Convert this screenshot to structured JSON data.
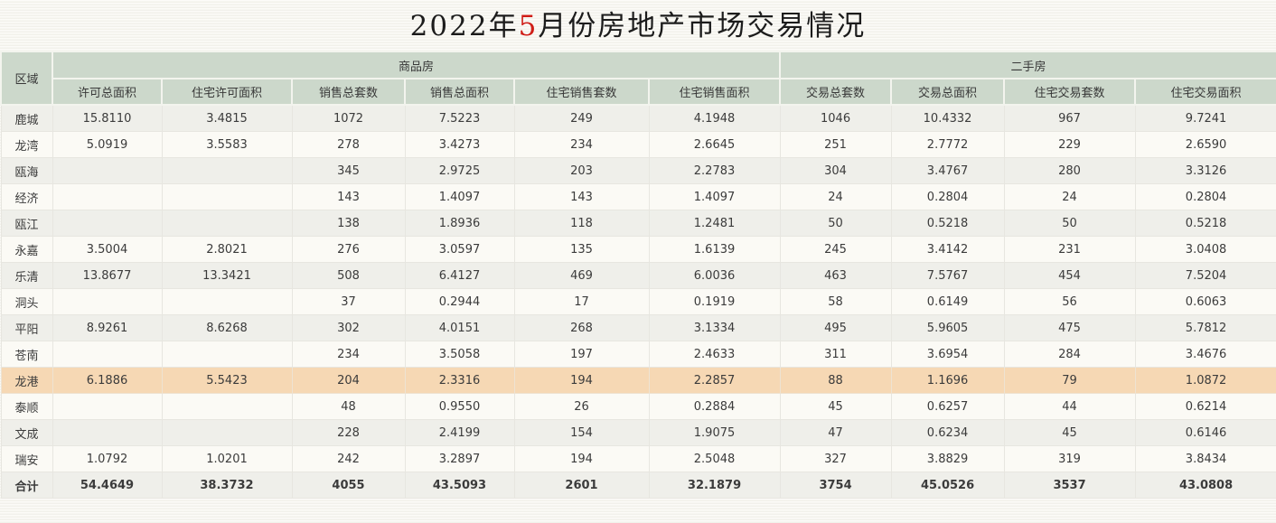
{
  "title": {
    "prefix": "2022年",
    "highlight": "5",
    "suffix": "月份房地产市场交易情况",
    "highlight_color": "#cf1d17"
  },
  "colors": {
    "header_bg": "#ccd8cb",
    "stripe_row_bg": "#efefea",
    "plain_row_bg": "#fbfaf5",
    "highlight_row_bg": "#f6d8b4",
    "page_bg": "#f8f7f1",
    "title_accent": "#cf1d17"
  },
  "table": {
    "corner_header": "区域",
    "groups": [
      {
        "label": "商品房",
        "span": 6
      },
      {
        "label": "二手房",
        "span": 4
      }
    ],
    "subheaders": [
      "许可总面积",
      "住宅许可面积",
      "销售总套数",
      "销售总面积",
      "住宅销售套数",
      "住宅销售面积",
      "交易总套数",
      "交易总面积",
      "住宅交易套数",
      "住宅交易面积"
    ],
    "rows": [
      {
        "region": "鹿城",
        "values": [
          "15.8110",
          "3.4815",
          "1072",
          "7.5223",
          "249",
          "4.1948",
          "1046",
          "10.4332",
          "967",
          "9.7241"
        ],
        "highlight": false,
        "total": false
      },
      {
        "region": "龙湾",
        "values": [
          "5.0919",
          "3.5583",
          "278",
          "3.4273",
          "234",
          "2.6645",
          "251",
          "2.7772",
          "229",
          "2.6590"
        ],
        "highlight": false,
        "total": false
      },
      {
        "region": "瓯海",
        "values": [
          "",
          "",
          "345",
          "2.9725",
          "203",
          "2.2783",
          "304",
          "3.4767",
          "280",
          "3.3126"
        ],
        "highlight": false,
        "total": false
      },
      {
        "region": "经济",
        "values": [
          "",
          "",
          "143",
          "1.4097",
          "143",
          "1.4097",
          "24",
          "0.2804",
          "24",
          "0.2804"
        ],
        "highlight": false,
        "total": false
      },
      {
        "region": "瓯江",
        "values": [
          "",
          "",
          "138",
          "1.8936",
          "118",
          "1.2481",
          "50",
          "0.5218",
          "50",
          "0.5218"
        ],
        "highlight": false,
        "total": false
      },
      {
        "region": "永嘉",
        "values": [
          "3.5004",
          "2.8021",
          "276",
          "3.0597",
          "135",
          "1.6139",
          "245",
          "3.4142",
          "231",
          "3.0408"
        ],
        "highlight": false,
        "total": false
      },
      {
        "region": "乐清",
        "values": [
          "13.8677",
          "13.3421",
          "508",
          "6.4127",
          "469",
          "6.0036",
          "463",
          "7.5767",
          "454",
          "7.5204"
        ],
        "highlight": false,
        "total": false
      },
      {
        "region": "洞头",
        "values": [
          "",
          "",
          "37",
          "0.2944",
          "17",
          "0.1919",
          "58",
          "0.6149",
          "56",
          "0.6063"
        ],
        "highlight": false,
        "total": false
      },
      {
        "region": "平阳",
        "values": [
          "8.9261",
          "8.6268",
          "302",
          "4.0151",
          "268",
          "3.1334",
          "495",
          "5.9605",
          "475",
          "5.7812"
        ],
        "highlight": false,
        "total": false
      },
      {
        "region": "苍南",
        "values": [
          "",
          "",
          "234",
          "3.5058",
          "197",
          "2.4633",
          "311",
          "3.6954",
          "284",
          "3.4676"
        ],
        "highlight": false,
        "total": false
      },
      {
        "region": "龙港",
        "values": [
          "6.1886",
          "5.5423",
          "204",
          "2.3316",
          "194",
          "2.2857",
          "88",
          "1.1696",
          "79",
          "1.0872"
        ],
        "highlight": true,
        "total": false
      },
      {
        "region": "泰顺",
        "values": [
          "",
          "",
          "48",
          "0.9550",
          "26",
          "0.2884",
          "45",
          "0.6257",
          "44",
          "0.6214"
        ],
        "highlight": false,
        "total": false
      },
      {
        "region": "文成",
        "values": [
          "",
          "",
          "228",
          "2.4199",
          "154",
          "1.9075",
          "47",
          "0.6234",
          "45",
          "0.6146"
        ],
        "highlight": false,
        "total": false
      },
      {
        "region": "瑞安",
        "values": [
          "1.0792",
          "1.0201",
          "242",
          "3.2897",
          "194",
          "2.5048",
          "327",
          "3.8829",
          "319",
          "3.8434"
        ],
        "highlight": false,
        "total": false
      },
      {
        "region": "合计",
        "values": [
          "54.4649",
          "38.3732",
          "4055",
          "43.5093",
          "2601",
          "32.1879",
          "3754",
          "45.0526",
          "3537",
          "43.0808"
        ],
        "highlight": false,
        "total": true
      }
    ]
  }
}
